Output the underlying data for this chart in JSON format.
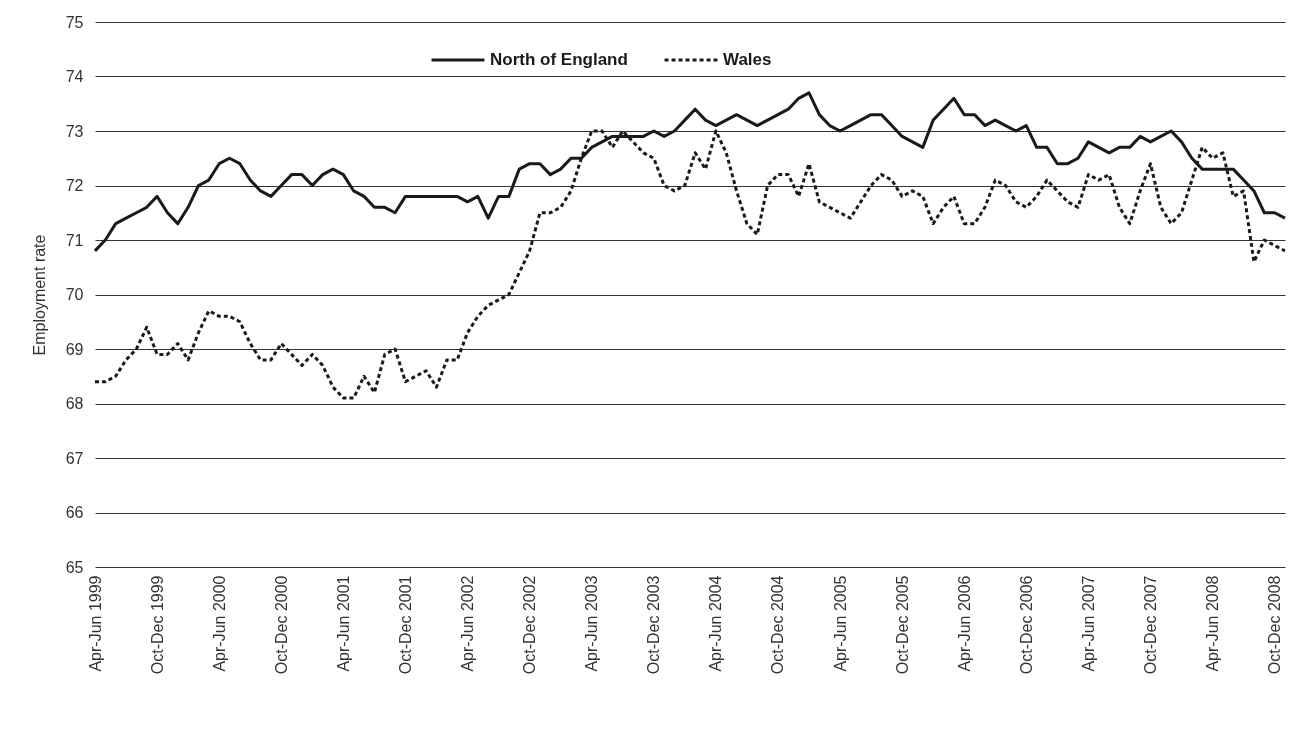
{
  "chart_data": {
    "type": "line",
    "ylabel": "Employment rate",
    "categories": [
      "Apr-Jun 1999",
      null,
      null,
      null,
      null,
      null,
      "Oct-Dec 1999",
      null,
      null,
      null,
      null,
      null,
      "Apr-Jun 2000",
      null,
      null,
      null,
      null,
      null,
      "Oct-Dec 2000",
      null,
      null,
      null,
      null,
      null,
      "Apr-Jun 2001",
      null,
      null,
      null,
      null,
      null,
      "Oct-Dec 2001",
      null,
      null,
      null,
      null,
      null,
      "Apr-Jun 2002",
      null,
      null,
      null,
      null,
      null,
      "Oct-Dec 2002",
      null,
      null,
      null,
      null,
      null,
      "Apr-Jun 2003",
      null,
      null,
      null,
      null,
      null,
      "Oct-Dec 2003",
      null,
      null,
      null,
      null,
      null,
      "Apr-Jun 2004",
      null,
      null,
      null,
      null,
      null,
      "Oct-Dec 2004",
      null,
      null,
      null,
      null,
      null,
      "Apr-Jun 2005",
      null,
      null,
      null,
      null,
      null,
      "Oct-Dec 2005",
      null,
      null,
      null,
      null,
      null,
      "Apr-Jun 2006",
      null,
      null,
      null,
      null,
      null,
      "Oct-Dec 2006",
      null,
      null,
      null,
      null,
      null,
      "Apr-Jun 2007",
      null,
      null,
      null,
      null,
      null,
      "Oct-Dec 2007",
      null,
      null,
      null,
      null,
      null,
      "Apr-Jun 2008",
      null,
      null,
      null,
      null,
      null,
      "Oct-Dec 2008",
      null
    ],
    "series": [
      {
        "name": "North of England",
        "color": "#1a1a1a",
        "line_style": "solid",
        "values": [
          70.8,
          71.0,
          71.3,
          71.4,
          71.5,
          71.6,
          71.8,
          71.5,
          71.3,
          71.6,
          72.0,
          72.1,
          72.4,
          72.5,
          72.4,
          72.1,
          71.9,
          71.8,
          72.0,
          72.2,
          72.2,
          72.0,
          72.2,
          72.3,
          72.2,
          71.9,
          71.8,
          71.6,
          71.6,
          71.5,
          71.8,
          71.8,
          71.8,
          71.8,
          71.8,
          71.8,
          71.7,
          71.8,
          71.4,
          71.8,
          71.8,
          72.3,
          72.4,
          72.4,
          72.2,
          72.3,
          72.5,
          72.5,
          72.7,
          72.8,
          72.9,
          72.9,
          72.9,
          72.9,
          73.0,
          72.9,
          73.0,
          73.2,
          73.4,
          73.2,
          73.1,
          73.2,
          73.3,
          73.2,
          73.1,
          73.2,
          73.3,
          73.4,
          73.6,
          73.7,
          73.3,
          73.1,
          73.0,
          73.1,
          73.2,
          73.3,
          73.3,
          73.1,
          72.9,
          72.8,
          72.7,
          73.2,
          73.4,
          73.6,
          73.3,
          73.3,
          73.1,
          73.2,
          73.1,
          73.0,
          73.1,
          72.7,
          72.7,
          72.4,
          72.4,
          72.5,
          72.8,
          72.7,
          72.6,
          72.7,
          72.7,
          72.9,
          72.8,
          72.9,
          73.0,
          72.8,
          72.5,
          72.3,
          72.3,
          72.3,
          72.3,
          72.1,
          71.9,
          71.5,
          71.5,
          71.4
        ]
      },
      {
        "name": "Wales",
        "color": "#1a1a1a",
        "line_style": "dashed",
        "values": [
          68.4,
          68.4,
          68.5,
          68.8,
          69.0,
          69.4,
          68.9,
          68.9,
          69.1,
          68.8,
          69.3,
          69.7,
          69.6,
          69.6,
          69.5,
          69.1,
          68.8,
          68.8,
          69.1,
          68.9,
          68.7,
          68.9,
          68.7,
          68.3,
          68.1,
          68.1,
          68.5,
          68.2,
          68.9,
          69.0,
          68.4,
          68.5,
          68.6,
          68.3,
          68.8,
          68.8,
          69.3,
          69.6,
          69.8,
          69.9,
          70.0,
          70.4,
          70.8,
          71.5,
          71.5,
          71.6,
          71.9,
          72.5,
          73.0,
          73.0,
          72.7,
          73.0,
          72.8,
          72.6,
          72.5,
          72.0,
          71.9,
          72.0,
          72.6,
          72.3,
          73.0,
          72.6,
          71.9,
          71.3,
          71.1,
          72.0,
          72.2,
          72.2,
          71.8,
          72.4,
          71.7,
          71.6,
          71.5,
          71.4,
          71.7,
          72.0,
          72.2,
          72.1,
          71.8,
          71.9,
          71.8,
          71.3,
          71.6,
          71.8,
          71.3,
          71.3,
          71.6,
          72.1,
          72.0,
          71.7,
          71.6,
          71.8,
          72.1,
          71.9,
          71.7,
          71.6,
          72.2,
          72.1,
          72.2,
          71.6,
          71.3,
          71.9,
          72.4,
          71.6,
          71.3,
          71.5,
          72.1,
          72.7,
          72.5,
          72.6,
          71.8,
          71.9,
          70.6,
          71.0,
          70.9,
          70.8
        ]
      }
    ],
    "ylim": [
      65,
      75
    ],
    "yticks": [
      65,
      66,
      67,
      68,
      69,
      70,
      71,
      72,
      73,
      74,
      75
    ],
    "grid": "y",
    "legend": "top"
  }
}
